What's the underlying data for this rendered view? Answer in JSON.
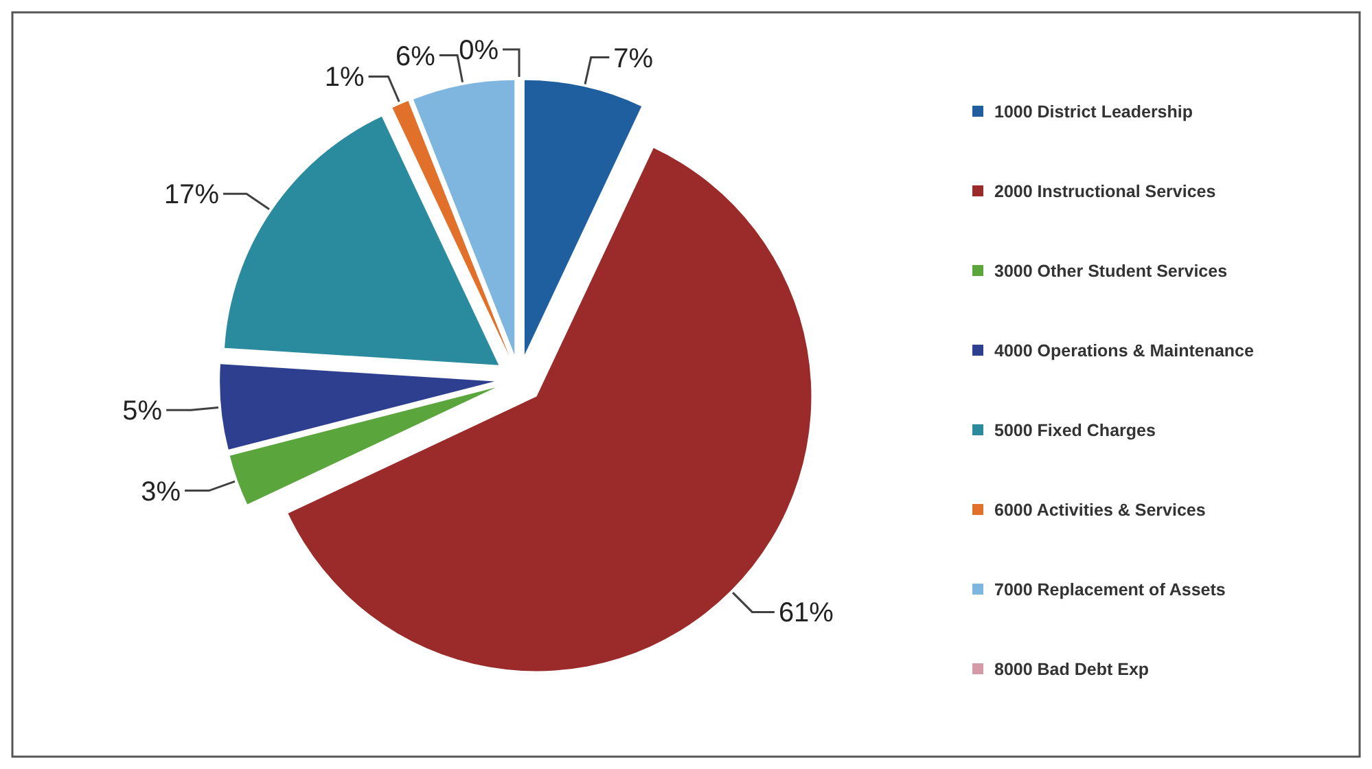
{
  "chart_data": {
    "type": "pie",
    "categories": [
      "1000  District Leadership",
      "2000  Instructional Services",
      "3000  Other Student Services",
      "4000  Operations & Maintenance",
      "5000  Fixed Charges",
      "6000  Activities & Services",
      "7000  Replacement of Assets",
      "8000  Bad Debt Exp"
    ],
    "values": [
      7,
      61,
      3,
      5,
      17,
      1,
      6,
      0
    ],
    "value_labels": [
      "7%",
      "61%",
      "3%",
      "5%",
      "17%",
      "1%",
      "6%",
      "0%"
    ],
    "colors": [
      "#1f5fa0",
      "#9b2a2a",
      "#5aa63c",
      "#2e3f8f",
      "#2a8a9e",
      "#e0702a",
      "#7fb6e0",
      "#d49aa8"
    ],
    "legend": "right"
  }
}
